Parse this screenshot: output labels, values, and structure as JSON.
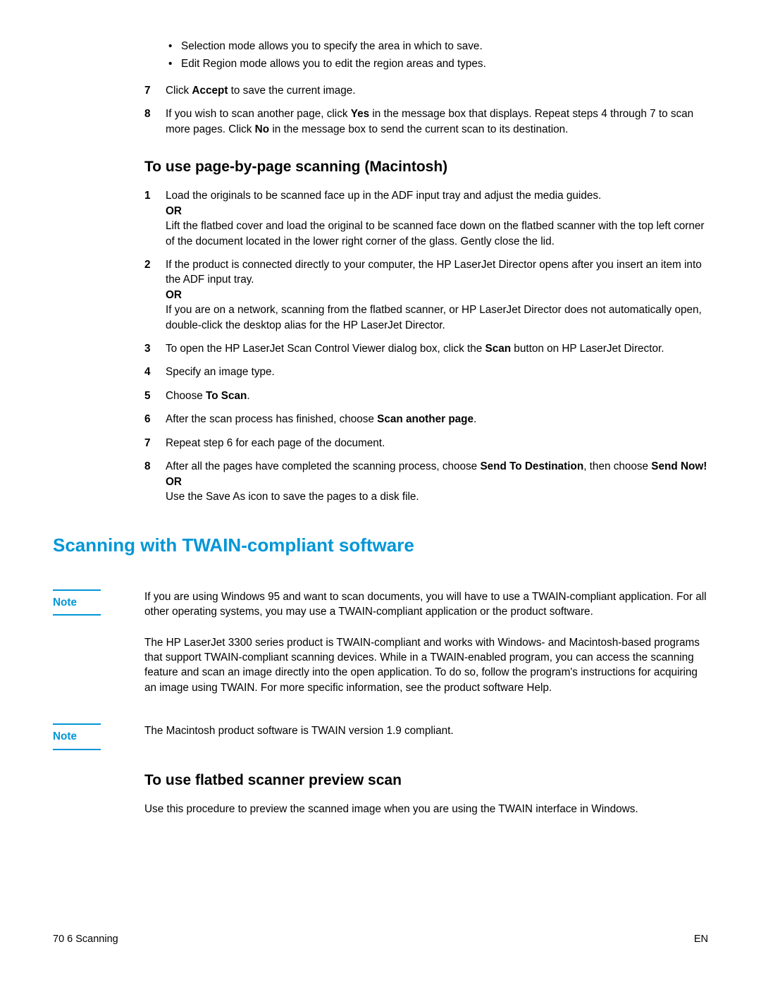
{
  "colors": {
    "accent": "#0096d6",
    "text": "#000000",
    "bg": "#ffffff"
  },
  "intro_list": {
    "bullets": [
      "Selection mode allows you to specify the area in which to save.",
      "Edit Region mode allows you to edit the region areas and types."
    ],
    "step7_pre": "Click ",
    "step7_bold": "Accept",
    "step7_post": " to save the current image.",
    "step8_a": "If you wish to scan another page, click ",
    "step8_b": "Yes",
    "step8_c": " in the message box that displays. Repeat steps 4 through 7 to scan more pages. Click ",
    "step8_d": "No",
    "step8_e": " in the message box to send the current scan to its destination."
  },
  "mac": {
    "heading": "To use page-by-page scanning (Macintosh)",
    "s1_a": "Load the originals to be scanned face up in the ADF input tray and adjust the media guides.",
    "or": "OR",
    "s1_b": "Lift the flatbed cover and load the original to be scanned face down on the flatbed scanner with the top left corner of the document located in the lower right corner of the glass. Gently close the lid.",
    "s2_a": "If the product is connected directly to your computer, the HP LaserJet Director opens after you insert an item into the ADF input tray.",
    "s2_b": "If you are on a network, scanning from the flatbed scanner, or HP LaserJet Director does not automatically open, double-click the desktop alias for the HP LaserJet Director.",
    "s3_a": "To open the HP LaserJet Scan Control Viewer dialog box, click the ",
    "s3_b": "Scan",
    "s3_c": " button on HP LaserJet Director.",
    "s4": "Specify an image type.",
    "s5_a": "Choose ",
    "s5_b": "To Scan",
    "s5_c": ".",
    "s6_a": "After the scan process has finished, choose ",
    "s6_b": "Scan another page",
    "s6_c": ".",
    "s7": "Repeat step 6 for each page of the document.",
    "s8_a": "After all the pages have completed the scanning process, choose ",
    "s8_b": "Send To Destination",
    "s8_c": ", then choose ",
    "s8_d": "Send Now!",
    "s8_e": "Use the Save As icon to save the pages to a disk file."
  },
  "twain": {
    "heading": "Scanning with TWAIN-compliant software",
    "note_label": "Note",
    "note1": "If you are using Windows 95 and want to scan documents, you will have to use a TWAIN-compliant application. For all other operating systems, you may use a TWAIN-compliant application or the product software.",
    "para": "The HP LaserJet 3300 series product is TWAIN-compliant and works with Windows- and Macintosh-based programs that support TWAIN-compliant scanning devices. While in a TWAIN-enabled program, you can access the scanning feature and scan an image directly into the open application. To do so, follow the program's instructions for acquiring an image using TWAIN. For more specific information, see the product software Help.",
    "note2": "The Macintosh product software is TWAIN version 1.9 compliant."
  },
  "flatbed": {
    "heading": "To use flatbed scanner preview scan",
    "para": "Use this procedure to preview the scanned image when you are using the TWAIN interface in Windows."
  },
  "footer": {
    "left": "70    6 Scanning",
    "right": "EN"
  }
}
